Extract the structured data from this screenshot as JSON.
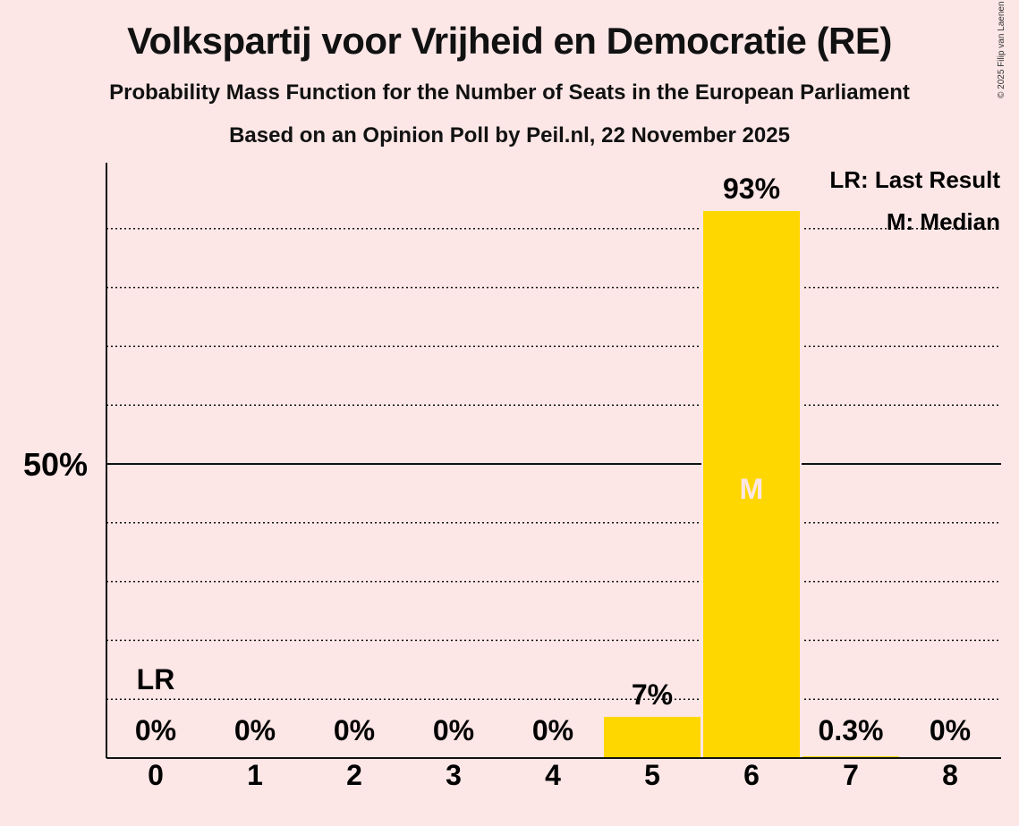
{
  "title": "Volkspartij voor Vrijheid en Democratie (RE)",
  "subtitle": "Probability Mass Function for the Number of Seats in the European Parliament",
  "source": "Based on an Opinion Poll by Peil.nl, 22 November 2025",
  "copyright": "© 2025 Filip van Laenen",
  "legend": {
    "last_result": "LR: Last Result",
    "median": "M: Median"
  },
  "colors": {
    "background": "#fce6e6",
    "bar": "#ffd700",
    "median_text": "#fce6e6"
  },
  "chart_data": {
    "type": "bar",
    "categories": [
      "0",
      "1",
      "2",
      "3",
      "4",
      "5",
      "6",
      "7",
      "8"
    ],
    "values": [
      0,
      0,
      0,
      0,
      0,
      7,
      93,
      0.3,
      0
    ],
    "value_labels": [
      "0%",
      "0%",
      "0%",
      "0%",
      "0%",
      "7%",
      "93%",
      "0.3%",
      "0%"
    ],
    "ylim": [
      0,
      100
    ],
    "y_ticks": [
      {
        "value": 50,
        "label": "50%"
      }
    ],
    "minor_gridlines": [
      10,
      20,
      30,
      40,
      60,
      70,
      80,
      90
    ],
    "last_result": {
      "category": "0",
      "label": "LR"
    },
    "median": {
      "category": "6",
      "label": "M"
    },
    "legend_position": "top-right"
  }
}
